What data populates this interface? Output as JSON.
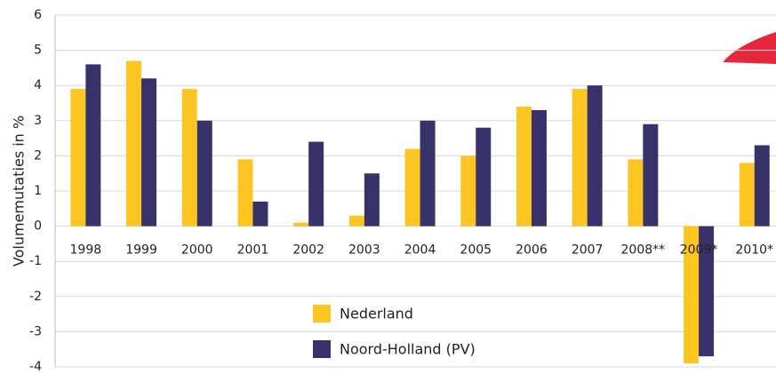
{
  "chart_data": {
    "type": "bar",
    "ylabel": "Volumemutaties in %",
    "categories": [
      "1998",
      "1999",
      "2000",
      "2001",
      "2002",
      "2003",
      "2004",
      "2005",
      "2006",
      "2007",
      "2008**",
      "2009*",
      "2010*"
    ],
    "series": [
      {
        "name": "Nederland",
        "color": "#fdc521",
        "values": [
          3.9,
          4.7,
          3.9,
          1.9,
          0.1,
          0.3,
          2.2,
          2.0,
          3.4,
          3.9,
          1.9,
          -3.9,
          1.8
        ]
      },
      {
        "name": "Noord-Holland (PV)",
        "color": "#37336a",
        "values": [
          4.6,
          4.2,
          3.0,
          0.7,
          2.4,
          1.5,
          3.0,
          2.8,
          3.3,
          4.0,
          2.9,
          -3.7,
          2.3
        ]
      }
    ],
    "ylim": [
      -4,
      6
    ],
    "yticks": [
      -4,
      -3,
      -2,
      -1,
      0,
      1,
      2,
      3,
      4,
      5,
      6
    ],
    "grid": true
  }
}
